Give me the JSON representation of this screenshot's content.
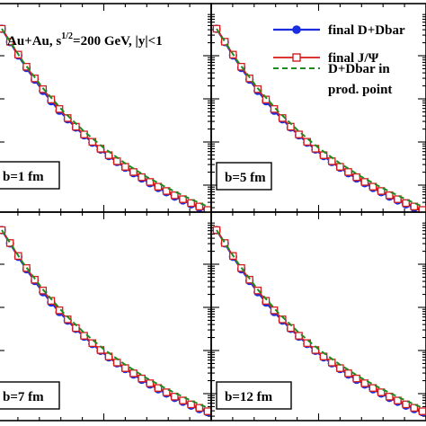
{
  "chart_data": {
    "type": "line",
    "title_parts": {
      "system": "Au+Au, s",
      "sup": "1/2",
      "rest": "=200 GeV, |y|<1"
    },
    "xlabel": "",
    "ylabel": "",
    "x_range": [
      0,
      10
    ],
    "y_scale": "log",
    "legend": {
      "placement": "top-right",
      "entries": [
        {
          "label": "final D+Dbar",
          "style": "solid line, filled circle markers",
          "color": "#1a2ee0"
        },
        {
          "label": "final J/Ψ",
          "style": "solid line, open square markers",
          "color": "#d41c1c"
        },
        {
          "label_lines": [
            "D+Dbar in",
            "prod. point"
          ],
          "style": "dashed line",
          "color": "#1f8a1f"
        }
      ]
    },
    "panels": [
      {
        "label": "b=1 fm",
        "series": [
          {
            "name": "final D+Dbar",
            "x": [
              0,
              0.4,
              0.8,
              1.2,
              1.6,
              2.0,
              2.4,
              2.8,
              3.2,
              3.6,
              4.0,
              4.4,
              4.8,
              5.2,
              5.6,
              6.0,
              6.4,
              6.8,
              7.2,
              7.6,
              8.0,
              8.4,
              8.8,
              9.2,
              9.6,
              10.0
            ],
            "y": [
              0,
              -0.31,
              -0.62,
              -0.91,
              -1.18,
              -1.44,
              -1.68,
              -1.9,
              -2.1,
              -2.29,
              -2.47,
              -2.64,
              -2.8,
              -2.95,
              -3.09,
              -3.22,
              -3.35,
              -3.47,
              -3.58,
              -3.69,
              -3.79,
              -3.89,
              -3.98,
              -4.07,
              -4.15,
              -4.22
            ]
          },
          {
            "name": "final J/Ψ",
            "x": [
              0,
              0.4,
              0.8,
              1.2,
              1.6,
              2.0,
              2.4,
              2.8,
              3.2,
              3.6,
              4.0,
              4.4,
              4.8,
              5.2,
              5.6,
              6.0,
              6.4,
              6.8,
              7.2,
              7.6,
              8.0,
              8.4,
              8.8,
              9.2,
              9.6,
              10.0
            ],
            "y": [
              0,
              -0.3,
              -0.6,
              -0.88,
              -1.15,
              -1.4,
              -1.64,
              -1.86,
              -2.07,
              -2.27,
              -2.45,
              -2.62,
              -2.78,
              -2.93,
              -3.07,
              -3.2,
              -3.32,
              -3.44,
              -3.55,
              -3.66,
              -3.76,
              -3.86,
              -3.95,
              -4.04,
              -4.12,
              -4.2
            ]
          },
          {
            "name": "D+Dbar in prod. point",
            "x": [
              0,
              1,
              2,
              3,
              4,
              5,
              6,
              7,
              8,
              9,
              10
            ],
            "y": [
              0,
              -0.74,
              -1.38,
              -1.92,
              -2.38,
              -2.78,
              -3.12,
              -3.42,
              -3.68,
              -3.91,
              -4.12
            ]
          }
        ]
      },
      {
        "label": "b=5 fm",
        "series": [
          {
            "name": "final D+Dbar",
            "x": [
              0,
              0.4,
              0.8,
              1.2,
              1.6,
              2.0,
              2.4,
              2.8,
              3.2,
              3.6,
              4.0,
              4.4,
              4.8,
              5.2,
              5.6,
              6.0,
              6.4,
              6.8,
              7.2,
              7.6,
              8.0,
              8.4,
              8.8,
              9.2,
              9.6,
              10.0
            ],
            "y": [
              0,
              -0.31,
              -0.62,
              -0.91,
              -1.18,
              -1.44,
              -1.68,
              -1.9,
              -2.1,
              -2.29,
              -2.47,
              -2.64,
              -2.8,
              -2.95,
              -3.09,
              -3.22,
              -3.35,
              -3.47,
              -3.58,
              -3.69,
              -3.79,
              -3.89,
              -3.98,
              -4.07,
              -4.15,
              -4.22
            ]
          },
          {
            "name": "final J/Ψ",
            "x": [
              0,
              0.4,
              0.8,
              1.2,
              1.6,
              2.0,
              2.4,
              2.8,
              3.2,
              3.6,
              4.0,
              4.4,
              4.8,
              5.2,
              5.6,
              6.0,
              6.4,
              6.8,
              7.2,
              7.6,
              8.0,
              8.4,
              8.8,
              9.2,
              9.6,
              10.0
            ],
            "y": [
              0,
              -0.3,
              -0.6,
              -0.88,
              -1.15,
              -1.4,
              -1.64,
              -1.86,
              -2.07,
              -2.27,
              -2.45,
              -2.62,
              -2.78,
              -2.93,
              -3.07,
              -3.2,
              -3.32,
              -3.44,
              -3.55,
              -3.66,
              -3.76,
              -3.86,
              -3.95,
              -4.04,
              -4.12,
              -4.2
            ]
          },
          {
            "name": "D+Dbar in prod. point",
            "x": [
              0,
              1,
              2,
              3,
              4,
              5,
              6,
              7,
              8,
              9,
              10
            ],
            "y": [
              0,
              -0.74,
              -1.38,
              -1.92,
              -2.38,
              -2.78,
              -3.12,
              -3.42,
              -3.68,
              -3.91,
              -4.12
            ]
          }
        ]
      },
      {
        "label": "b=7 fm",
        "series": [
          {
            "name": "final D+Dbar",
            "x": [
              0,
              0.4,
              0.8,
              1.2,
              1.6,
              2.0,
              2.4,
              2.8,
              3.2,
              3.6,
              4.0,
              4.4,
              4.8,
              5.2,
              5.6,
              6.0,
              6.4,
              6.8,
              7.2,
              7.6,
              8.0,
              8.4,
              8.8,
              9.2,
              9.6,
              10.0
            ],
            "y": [
              0,
              -0.31,
              -0.62,
              -0.91,
              -1.18,
              -1.44,
              -1.68,
              -1.9,
              -2.1,
              -2.29,
              -2.47,
              -2.64,
              -2.8,
              -2.95,
              -3.09,
              -3.22,
              -3.35,
              -3.47,
              -3.58,
              -3.69,
              -3.79,
              -3.89,
              -3.98,
              -4.07,
              -4.15,
              -4.22
            ]
          },
          {
            "name": "final J/Ψ",
            "x": [
              0,
              0.4,
              0.8,
              1.2,
              1.6,
              2.0,
              2.4,
              2.8,
              3.2,
              3.6,
              4.0,
              4.4,
              4.8,
              5.2,
              5.6,
              6.0,
              6.4,
              6.8,
              7.2,
              7.6,
              8.0,
              8.4,
              8.8,
              9.2,
              9.6,
              10.0
            ],
            "y": [
              0,
              -0.3,
              -0.6,
              -0.88,
              -1.15,
              -1.4,
              -1.64,
              -1.86,
              -2.07,
              -2.27,
              -2.45,
              -2.62,
              -2.78,
              -2.93,
              -3.07,
              -3.2,
              -3.32,
              -3.44,
              -3.55,
              -3.66,
              -3.76,
              -3.86,
              -3.95,
              -4.04,
              -4.12,
              -4.2
            ]
          },
          {
            "name": "D+Dbar in prod. point",
            "x": [
              0,
              1,
              2,
              3,
              4,
              5,
              6,
              7,
              8,
              9,
              10
            ],
            "y": [
              0,
              -0.74,
              -1.38,
              -1.92,
              -2.38,
              -2.78,
              -3.12,
              -3.42,
              -3.68,
              -3.91,
              -4.12
            ]
          }
        ]
      },
      {
        "label": "b=12 fm",
        "series": [
          {
            "name": "final D+Dbar",
            "x": [
              0,
              0.4,
              0.8,
              1.2,
              1.6,
              2.0,
              2.4,
              2.8,
              3.2,
              3.6,
              4.0,
              4.4,
              4.8,
              5.2,
              5.6,
              6.0,
              6.4,
              6.8,
              7.2,
              7.6,
              8.0,
              8.4,
              8.8,
              9.2,
              9.6,
              10.0
            ],
            "y": [
              0,
              -0.31,
              -0.62,
              -0.91,
              -1.18,
              -1.44,
              -1.68,
              -1.9,
              -2.1,
              -2.29,
              -2.47,
              -2.64,
              -2.8,
              -2.95,
              -3.09,
              -3.22,
              -3.35,
              -3.47,
              -3.58,
              -3.69,
              -3.79,
              -3.89,
              -3.98,
              -4.07,
              -4.15,
              -4.22
            ]
          },
          {
            "name": "final J/Ψ",
            "x": [
              0,
              0.4,
              0.8,
              1.2,
              1.6,
              2.0,
              2.4,
              2.8,
              3.2,
              3.6,
              4.0,
              4.4,
              4.8,
              5.2,
              5.6,
              6.0,
              6.4,
              6.8,
              7.2,
              7.6,
              8.0,
              8.4,
              8.8,
              9.2,
              9.6,
              10.0
            ],
            "y": [
              0,
              -0.3,
              -0.6,
              -0.88,
              -1.15,
              -1.4,
              -1.64,
              -1.86,
              -2.07,
              -2.27,
              -2.45,
              -2.62,
              -2.78,
              -2.93,
              -3.07,
              -3.2,
              -3.32,
              -3.44,
              -3.55,
              -3.66,
              -3.76,
              -3.86,
              -3.95,
              -4.04,
              -4.12,
              -4.2
            ]
          },
          {
            "name": "D+Dbar in prod. point",
            "x": [
              0,
              1,
              2,
              3,
              4,
              5,
              6,
              7,
              8,
              9,
              10
            ],
            "y": [
              0,
              -0.74,
              -1.38,
              -1.92,
              -2.38,
              -2.78,
              -3.12,
              -3.42,
              -3.68,
              -3.91,
              -4.12
            ]
          }
        ]
      }
    ]
  }
}
